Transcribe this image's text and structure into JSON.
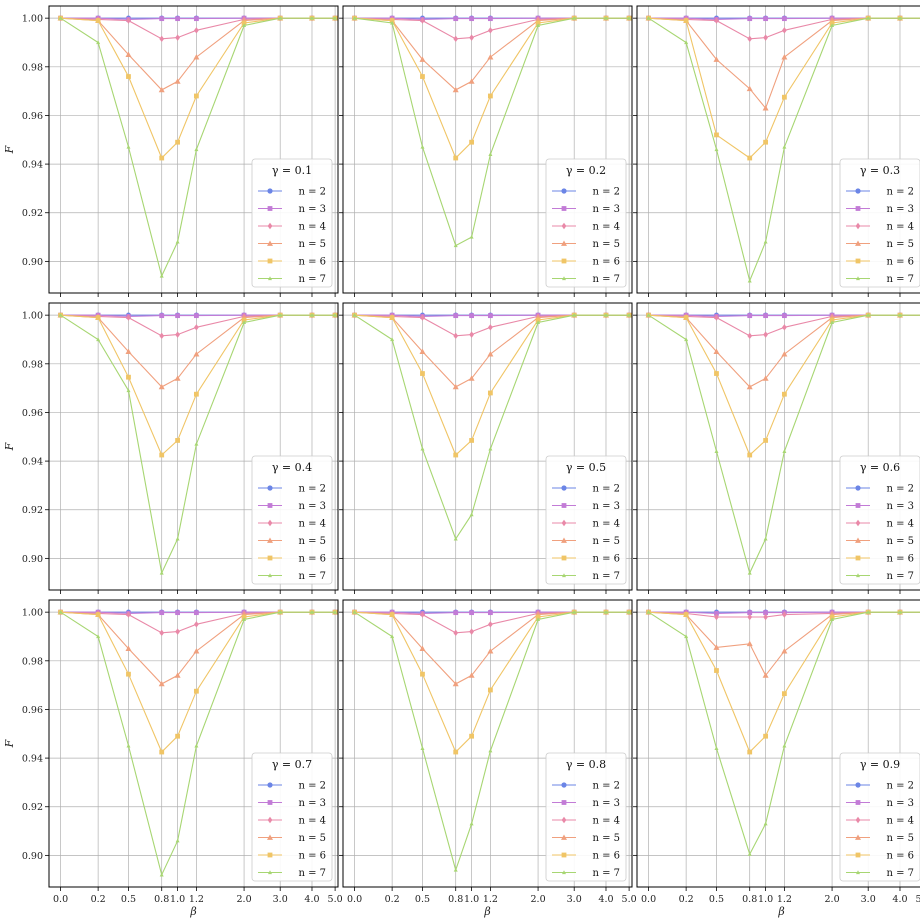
{
  "figure": {
    "ylabel": "F",
    "xlabel": "β"
  },
  "colors": {
    "n=2": "#6b85e6",
    "n=3": "#c27bd6",
    "n=4": "#e989a8",
    "n=5": "#f0a07e",
    "n=6": "#f0c566",
    "n=7": "#a7d672",
    "grid": "#b0b0b0"
  },
  "markers": {
    "n=2": "circle",
    "n=3": "square",
    "n=4": "diamond",
    "n=5": "triangle",
    "n=6": "square",
    "n=7": "triangle-small"
  },
  "chart_data": [
    {
      "type": "line",
      "title": "γ = 0.1",
      "legend_title": "γ = 0.1",
      "legend_loc": "lower-right",
      "x": [
        "0.0",
        "0.2",
        "0.5",
        "0.8",
        "1.0",
        "1.2",
        "2.0",
        "3.0",
        "4.0",
        "5.0"
      ],
      "ylim": [
        0.887,
        1.005
      ],
      "yticks": [
        "0.90",
        "0.92",
        "0.94",
        "0.96",
        "0.98",
        "1.00"
      ],
      "grid": true,
      "series": [
        {
          "name": "n = 2",
          "values": [
            1,
            1,
            1,
            1,
            1,
            1,
            1,
            1,
            1,
            1
          ]
        },
        {
          "name": "n = 3",
          "values": [
            1,
            1,
            0.9995,
            0.9998,
            0.9998,
            0.9998,
            1,
            1,
            1,
            1
          ]
        },
        {
          "name": "n = 4",
          "values": [
            1,
            0.9995,
            0.999,
            0.9915,
            0.992,
            0.995,
            0.9995,
            1,
            1,
            1
          ]
        },
        {
          "name": "n = 5",
          "values": [
            1,
            0.999,
            0.985,
            0.9705,
            0.974,
            0.984,
            0.999,
            1,
            1,
            1
          ]
        },
        {
          "name": "n = 6",
          "values": [
            1,
            0.999,
            0.976,
            0.9425,
            0.949,
            0.968,
            0.998,
            1,
            1,
            1
          ]
        },
        {
          "name": "n = 7",
          "values": [
            1,
            0.99,
            0.947,
            0.894,
            0.908,
            0.946,
            0.997,
            1,
            1,
            1
          ]
        }
      ]
    },
    {
      "type": "line",
      "title": "γ = 0.2",
      "legend_title": "γ = 0.2",
      "legend_loc": "lower-right",
      "x": [
        "0.0",
        "0.2",
        "0.5",
        "0.8",
        "1.0",
        "1.2",
        "2.0",
        "3.0",
        "4.0",
        "5.0"
      ],
      "ylim": [
        0.887,
        1.005
      ],
      "yticks": [
        "0.90",
        "0.92",
        "0.94",
        "0.96",
        "0.98",
        "1.00"
      ],
      "grid": true,
      "series": [
        {
          "name": "n = 2",
          "values": [
            1,
            1,
            1,
            1,
            1,
            1,
            1,
            1,
            1,
            1
          ]
        },
        {
          "name": "n = 3",
          "values": [
            1,
            1,
            0.9995,
            0.9998,
            0.9998,
            0.9998,
            1,
            1,
            1,
            1
          ]
        },
        {
          "name": "n = 4",
          "values": [
            1,
            0.9995,
            0.999,
            0.9915,
            0.992,
            0.995,
            0.9995,
            1,
            1,
            1
          ]
        },
        {
          "name": "n = 5",
          "values": [
            1,
            0.999,
            0.983,
            0.9705,
            0.974,
            0.984,
            0.999,
            1,
            1,
            1
          ]
        },
        {
          "name": "n = 6",
          "values": [
            1,
            0.999,
            0.976,
            0.9425,
            0.949,
            0.968,
            0.998,
            1,
            1,
            1
          ]
        },
        {
          "name": "n = 7",
          "values": [
            1,
            0.998,
            0.947,
            0.9065,
            0.91,
            0.944,
            0.997,
            1,
            1,
            1
          ]
        }
      ]
    },
    {
      "type": "line",
      "title": "γ = 0.3",
      "legend_title": "γ = 0.3",
      "legend_loc": "lower-right",
      "x": [
        "0.0",
        "0.2",
        "0.5",
        "0.8",
        "1.0",
        "1.2",
        "2.0",
        "3.0",
        "4.0",
        "5.0"
      ],
      "ylim": [
        0.887,
        1.005
      ],
      "yticks": [
        "0.90",
        "0.92",
        "0.94",
        "0.96",
        "0.98",
        "1.00"
      ],
      "grid": true,
      "series": [
        {
          "name": "n = 2",
          "values": [
            1,
            1,
            1,
            1,
            1,
            1,
            1,
            1,
            1,
            1
          ]
        },
        {
          "name": "n = 3",
          "values": [
            1,
            1,
            0.9995,
            0.9998,
            0.9998,
            0.9998,
            1,
            1,
            1,
            1
          ]
        },
        {
          "name": "n = 4",
          "values": [
            1,
            0.9995,
            0.999,
            0.9915,
            0.992,
            0.995,
            0.9995,
            1,
            1,
            1
          ]
        },
        {
          "name": "n = 5",
          "values": [
            1,
            0.999,
            0.983,
            0.971,
            0.963,
            0.984,
            0.999,
            1,
            1,
            1
          ]
        },
        {
          "name": "n = 6",
          "values": [
            1,
            0.999,
            0.952,
            0.9425,
            0.949,
            0.9675,
            0.998,
            1,
            1,
            1
          ]
        },
        {
          "name": "n = 7",
          "values": [
            1,
            0.99,
            0.946,
            0.892,
            0.908,
            0.947,
            0.997,
            1,
            1,
            1
          ]
        }
      ]
    },
    {
      "type": "line",
      "title": "γ = 0.4",
      "legend_title": "γ = 0.4",
      "legend_loc": "lower-right",
      "x": [
        "0.0",
        "0.2",
        "0.5",
        "0.8",
        "1.0",
        "1.2",
        "2.0",
        "3.0",
        "4.0",
        "5.0"
      ],
      "ylim": [
        0.887,
        1.005
      ],
      "yticks": [
        "0.90",
        "0.92",
        "0.94",
        "0.96",
        "0.98",
        "1.00"
      ],
      "grid": true,
      "series": [
        {
          "name": "n = 2",
          "values": [
            1,
            1,
            1,
            1,
            1,
            1,
            1,
            1,
            1,
            1
          ]
        },
        {
          "name": "n = 3",
          "values": [
            1,
            1,
            0.9995,
            0.9998,
            0.9998,
            0.9998,
            1,
            1,
            1,
            1
          ]
        },
        {
          "name": "n = 4",
          "values": [
            1,
            0.9995,
            0.999,
            0.9915,
            0.992,
            0.995,
            0.9995,
            1,
            1,
            1
          ]
        },
        {
          "name": "n = 5",
          "values": [
            1,
            0.999,
            0.985,
            0.9705,
            0.974,
            0.984,
            0.999,
            1,
            1,
            1
          ]
        },
        {
          "name": "n = 6",
          "values": [
            1,
            0.999,
            0.9745,
            0.9425,
            0.9485,
            0.9675,
            0.998,
            1,
            1,
            1
          ]
        },
        {
          "name": "n = 7",
          "values": [
            1,
            0.99,
            0.969,
            0.894,
            0.908,
            0.947,
            0.997,
            1,
            1,
            1
          ]
        }
      ]
    },
    {
      "type": "line",
      "title": "γ = 0.5",
      "legend_title": "γ = 0.5",
      "legend_loc": "lower-right",
      "x": [
        "0.0",
        "0.2",
        "0.5",
        "0.8",
        "1.0",
        "1.2",
        "2.0",
        "3.0",
        "4.0",
        "5.0"
      ],
      "ylim": [
        0.887,
        1.005
      ],
      "yticks": [
        "0.90",
        "0.92",
        "0.94",
        "0.96",
        "0.98",
        "1.00"
      ],
      "grid": true,
      "series": [
        {
          "name": "n = 2",
          "values": [
            1,
            1,
            1,
            1,
            1,
            1,
            1,
            1,
            1,
            1
          ]
        },
        {
          "name": "n = 3",
          "values": [
            1,
            1,
            0.9995,
            0.9998,
            0.9998,
            0.9998,
            1,
            1,
            1,
            1
          ]
        },
        {
          "name": "n = 4",
          "values": [
            1,
            0.9995,
            0.999,
            0.9915,
            0.992,
            0.995,
            0.9995,
            1,
            1,
            1
          ]
        },
        {
          "name": "n = 5",
          "values": [
            1,
            0.999,
            0.985,
            0.9705,
            0.974,
            0.984,
            0.999,
            1,
            1,
            1
          ]
        },
        {
          "name": "n = 6",
          "values": [
            1,
            0.999,
            0.976,
            0.9425,
            0.9485,
            0.968,
            0.998,
            1,
            1,
            1
          ]
        },
        {
          "name": "n = 7",
          "values": [
            1,
            0.99,
            0.945,
            0.908,
            0.918,
            0.945,
            0.997,
            1,
            1,
            1
          ]
        }
      ]
    },
    {
      "type": "line",
      "title": "γ = 0.6",
      "legend_title": "γ = 0.6",
      "legend_loc": "lower-right",
      "x": [
        "0.0",
        "0.2",
        "0.5",
        "0.8",
        "1.0",
        "1.2",
        "2.0",
        "3.0",
        "4.0",
        "5.0"
      ],
      "ylim": [
        0.887,
        1.005
      ],
      "yticks": [
        "0.90",
        "0.92",
        "0.94",
        "0.96",
        "0.98",
        "1.00"
      ],
      "grid": true,
      "series": [
        {
          "name": "n = 2",
          "values": [
            1,
            1,
            1,
            1,
            1,
            1,
            1,
            1,
            1,
            1
          ]
        },
        {
          "name": "n = 3",
          "values": [
            1,
            1,
            0.9995,
            0.9998,
            0.9998,
            0.9998,
            1,
            1,
            1,
            1
          ]
        },
        {
          "name": "n = 4",
          "values": [
            1,
            0.9995,
            0.999,
            0.9915,
            0.992,
            0.995,
            0.9995,
            1,
            1,
            1
          ]
        },
        {
          "name": "n = 5",
          "values": [
            1,
            0.999,
            0.985,
            0.9705,
            0.974,
            0.984,
            0.999,
            1,
            1,
            1
          ]
        },
        {
          "name": "n = 6",
          "values": [
            1,
            0.999,
            0.976,
            0.9425,
            0.9485,
            0.9675,
            0.998,
            1,
            1,
            1
          ]
        },
        {
          "name": "n = 7",
          "values": [
            1,
            0.99,
            0.944,
            0.894,
            0.908,
            0.944,
            0.997,
            1,
            1,
            1
          ]
        }
      ]
    },
    {
      "type": "line",
      "title": "γ = 0.7",
      "legend_title": "γ = 0.7",
      "legend_loc": "lower-right",
      "x": [
        "0.0",
        "0.2",
        "0.5",
        "0.8",
        "1.0",
        "1.2",
        "2.0",
        "3.0",
        "4.0",
        "5.0"
      ],
      "ylim": [
        0.887,
        1.005
      ],
      "yticks": [
        "0.90",
        "0.92",
        "0.94",
        "0.96",
        "0.98",
        "1.00"
      ],
      "grid": true,
      "series": [
        {
          "name": "n = 2",
          "values": [
            1,
            1,
            1,
            1,
            1,
            1,
            1,
            1,
            1,
            1
          ]
        },
        {
          "name": "n = 3",
          "values": [
            1,
            1,
            0.9995,
            0.9998,
            0.9998,
            0.9998,
            1,
            1,
            1,
            1
          ]
        },
        {
          "name": "n = 4",
          "values": [
            1,
            0.9995,
            0.999,
            0.9915,
            0.992,
            0.995,
            0.9995,
            1,
            1,
            1
          ]
        },
        {
          "name": "n = 5",
          "values": [
            1,
            0.999,
            0.985,
            0.9705,
            0.974,
            0.984,
            0.999,
            1,
            1,
            1
          ]
        },
        {
          "name": "n = 6",
          "values": [
            1,
            0.999,
            0.9745,
            0.9425,
            0.949,
            0.9675,
            0.998,
            1,
            1,
            1
          ]
        },
        {
          "name": "n = 7",
          "values": [
            1,
            0.99,
            0.945,
            0.892,
            0.906,
            0.945,
            0.997,
            1,
            1,
            1
          ]
        }
      ]
    },
    {
      "type": "line",
      "title": "γ = 0.8",
      "legend_title": "γ = 0.8",
      "legend_loc": "lower-right",
      "x": [
        "0.0",
        "0.2",
        "0.5",
        "0.8",
        "1.0",
        "1.2",
        "2.0",
        "3.0",
        "4.0",
        "5.0"
      ],
      "ylim": [
        0.887,
        1.005
      ],
      "yticks": [
        "0.90",
        "0.92",
        "0.94",
        "0.96",
        "0.98",
        "1.00"
      ],
      "grid": true,
      "series": [
        {
          "name": "n = 2",
          "values": [
            1,
            1,
            1,
            1,
            1,
            1,
            1,
            1,
            1,
            1
          ]
        },
        {
          "name": "n = 3",
          "values": [
            1,
            1,
            0.9995,
            0.9998,
            0.9998,
            0.9998,
            1,
            1,
            1,
            1
          ]
        },
        {
          "name": "n = 4",
          "values": [
            1,
            0.9995,
            0.999,
            0.9915,
            0.992,
            0.995,
            0.9995,
            1,
            1,
            1
          ]
        },
        {
          "name": "n = 5",
          "values": [
            1,
            0.999,
            0.985,
            0.9705,
            0.974,
            0.984,
            0.999,
            1,
            1,
            1
          ]
        },
        {
          "name": "n = 6",
          "values": [
            1,
            0.999,
            0.9745,
            0.9425,
            0.949,
            0.968,
            0.998,
            1,
            1,
            1
          ]
        },
        {
          "name": "n = 7",
          "values": [
            1,
            0.99,
            0.944,
            0.894,
            0.913,
            0.943,
            0.997,
            1,
            1,
            1
          ]
        }
      ]
    },
    {
      "type": "line",
      "title": "γ = 0.9",
      "legend_title": "γ = 0.9",
      "legend_loc": "lower-right",
      "x": [
        "0.0",
        "0.2",
        "0.5",
        "0.8",
        "1.0",
        "1.2",
        "2.0",
        "3.0",
        "4.0",
        "5.0"
      ],
      "ylim": [
        0.887,
        1.005
      ],
      "yticks": [
        "0.90",
        "0.92",
        "0.94",
        "0.96",
        "0.98",
        "1.00"
      ],
      "grid": true,
      "series": [
        {
          "name": "n = 2",
          "values": [
            1,
            1,
            1,
            1,
            1,
            1,
            1,
            1,
            1,
            1
          ]
        },
        {
          "name": "n = 3",
          "values": [
            1,
            1,
            0.9995,
            0.9998,
            0.9998,
            0.9998,
            1,
            1,
            1,
            1
          ]
        },
        {
          "name": "n = 4",
          "values": [
            1,
            0.9995,
            0.998,
            0.998,
            0.998,
            0.999,
            0.9995,
            1,
            1,
            1
          ]
        },
        {
          "name": "n = 5",
          "values": [
            1,
            0.999,
            0.9855,
            0.987,
            0.974,
            0.984,
            0.999,
            1,
            1,
            1
          ]
        },
        {
          "name": "n = 6",
          "values": [
            1,
            0.999,
            0.976,
            0.9425,
            0.949,
            0.9665,
            0.998,
            1,
            1,
            1
          ]
        },
        {
          "name": "n = 7",
          "values": [
            1,
            0.99,
            0.944,
            0.9005,
            0.913,
            0.945,
            0.997,
            1,
            1,
            1
          ]
        }
      ]
    }
  ]
}
